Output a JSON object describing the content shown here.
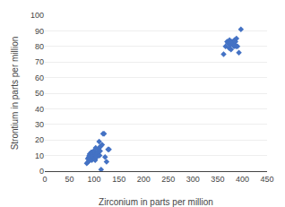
{
  "chart_data": {
    "type": "scatter",
    "xlabel": "Zirconium in parts per million",
    "ylabel": "Strontium in parts per million",
    "xlim": [
      0,
      450
    ],
    "ylim": [
      0,
      100
    ],
    "xticks": [
      0,
      50,
      100,
      150,
      200,
      250,
      300,
      350,
      400,
      450
    ],
    "yticks": [
      0,
      10,
      20,
      30,
      40,
      50,
      60,
      70,
      80,
      90,
      100
    ],
    "grid": "y",
    "series": [
      {
        "color": "#4472c4",
        "marker": "diamond",
        "x": [
          85,
          87,
          88,
          89,
          90,
          91,
          91,
          92,
          92,
          93,
          93,
          94,
          95,
          95,
          96,
          96,
          97,
          97,
          98,
          98,
          99,
          99,
          100,
          100,
          100,
          101,
          101,
          102,
          102,
          103,
          103,
          104,
          105,
          106,
          107,
          108,
          109,
          110,
          110,
          111,
          112,
          113,
          114,
          116,
          118,
          120,
          122,
          125,
          128,
          130
        ],
        "values": [
          5,
          8,
          6,
          9,
          10,
          11,
          7,
          10,
          9,
          11,
          8,
          12,
          7,
          10,
          9,
          12,
          8,
          11,
          10,
          9,
          13,
          8,
          10,
          11,
          9,
          12,
          8,
          10,
          7,
          15,
          11,
          10,
          9,
          12,
          11,
          14,
          10,
          19,
          15,
          10,
          13,
          16,
          1,
          17,
          24,
          24,
          9,
          6,
          14,
          14
        ]
      },
      {
        "color": "#4472c4",
        "marker": "diamond",
        "x": [
          362,
          366,
          369,
          371,
          373,
          374,
          376,
          377,
          379,
          381,
          383,
          384,
          385,
          386,
          387,
          388,
          390,
          393,
          397
        ],
        "values": [
          75,
          80,
          83,
          82,
          79,
          84,
          81,
          78,
          83,
          82,
          80,
          84,
          81,
          83,
          80,
          85,
          80,
          76,
          91
        ]
      }
    ]
  }
}
